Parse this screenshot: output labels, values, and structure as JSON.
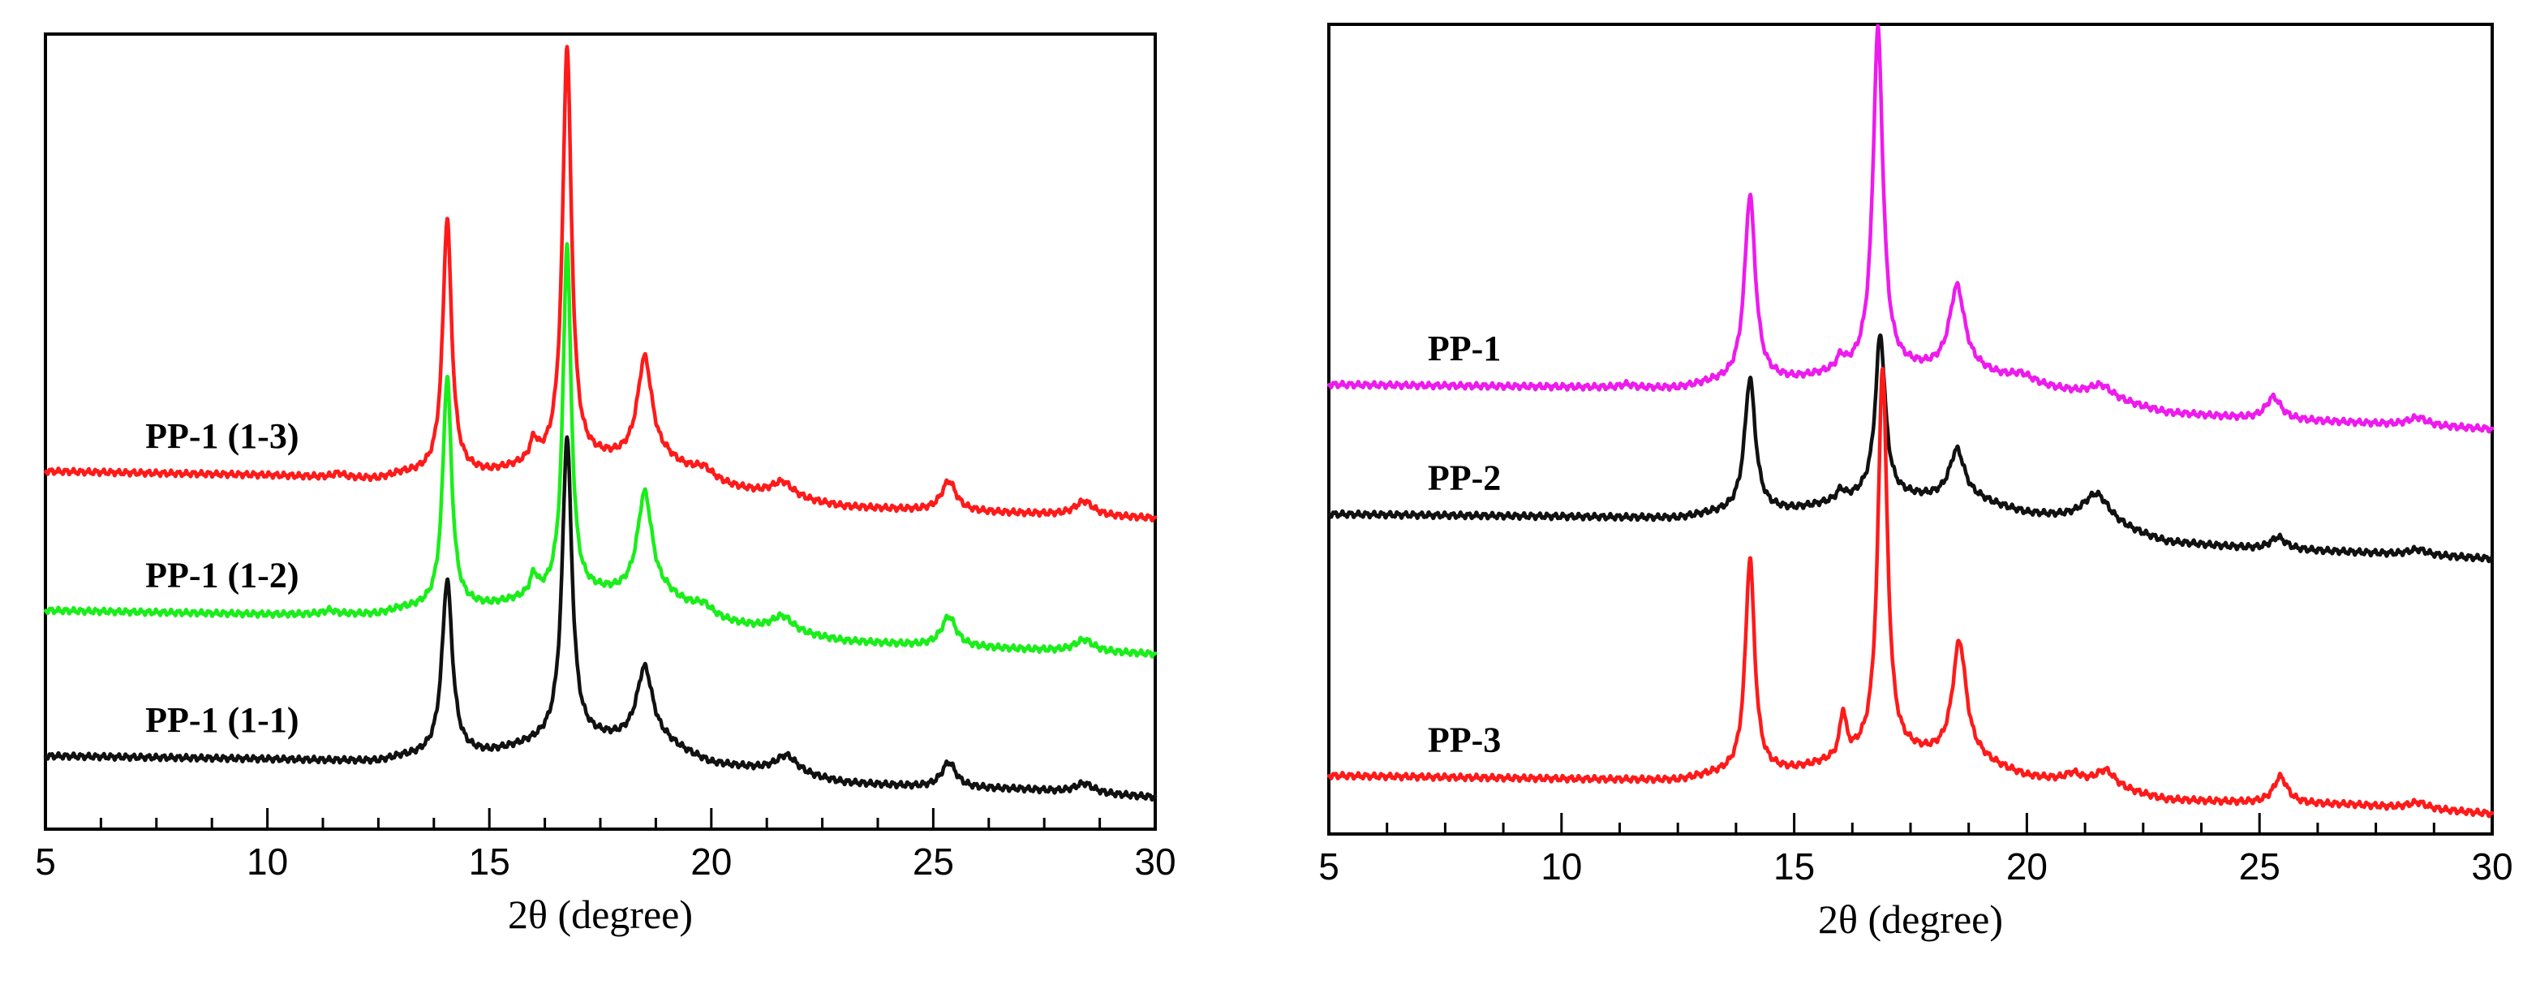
{
  "chart_data": [
    {
      "type": "line",
      "panel": "left",
      "xlabel": "2θ (degree)",
      "ylabel": "",
      "xlim": [
        5,
        30
      ],
      "ylim": [
        0,
        10
      ],
      "xticks": [
        5,
        10,
        15,
        20,
        25,
        30
      ],
      "series": [
        {
          "name": "PP-1 (1-3)",
          "color": "#ff1a1a",
          "baseline": [
            [
              5,
              4.5
            ],
            [
              10,
              4.45
            ],
            [
              12.5,
              4.4
            ],
            [
              13,
              4.46
            ],
            [
              15,
              4.47
            ],
            [
              16.5,
              4.62
            ],
            [
              17.5,
              4.63
            ],
            [
              19,
              4.6
            ],
            [
              20,
              4.34
            ],
            [
              21.5,
              4.17
            ],
            [
              23,
              4.05
            ],
            [
              25,
              4.0
            ],
            [
              27,
              3.97
            ],
            [
              30,
              3.91
            ]
          ],
          "peaks": [
            {
              "x": 11.6,
              "h": 0.05,
              "w": 0.15
            },
            {
              "x": 14.05,
              "h": 3.2,
              "w": 0.12
            },
            {
              "x": 16.0,
              "h": 0.25,
              "w": 0.1
            },
            {
              "x": 16.75,
              "h": 5.2,
              "w": 0.12
            },
            {
              "x": 18.5,
              "h": 1.3,
              "w": 0.2
            },
            {
              "x": 19.85,
              "h": 0.15,
              "w": 0.3
            },
            {
              "x": 21.6,
              "h": 0.2,
              "w": 0.3
            },
            {
              "x": 25.35,
              "h": 0.38,
              "w": 0.2
            },
            {
              "x": 28.4,
              "h": 0.18,
              "w": 0.25
            }
          ]
        },
        {
          "name": "PP-1 (1-2)",
          "color": "#1aee1a",
          "baseline": [
            [
              5,
              2.75
            ],
            [
              10,
              2.7
            ],
            [
              12.5,
              2.7
            ],
            [
              13,
              2.76
            ],
            [
              15,
              2.8
            ],
            [
              16.5,
              2.94
            ],
            [
              17.5,
              2.95
            ],
            [
              19,
              2.9
            ],
            [
              20,
              2.62
            ],
            [
              21.5,
              2.48
            ],
            [
              23,
              2.36
            ],
            [
              25,
              2.3
            ],
            [
              27,
              2.26
            ],
            [
              30,
              2.2
            ]
          ],
          "peaks": [
            {
              "x": 11.4,
              "h": 0.05,
              "w": 0.15
            },
            {
              "x": 14.05,
              "h": 2.9,
              "w": 0.12
            },
            {
              "x": 16.0,
              "h": 0.25,
              "w": 0.1
            },
            {
              "x": 16.75,
              "h": 4.4,
              "w": 0.11
            },
            {
              "x": 18.5,
              "h": 1.3,
              "w": 0.2
            },
            {
              "x": 19.85,
              "h": 0.15,
              "w": 0.3
            },
            {
              "x": 21.6,
              "h": 0.2,
              "w": 0.3
            },
            {
              "x": 25.35,
              "h": 0.38,
              "w": 0.2
            },
            {
              "x": 28.4,
              "h": 0.15,
              "w": 0.25
            }
          ]
        },
        {
          "name": "PP-1 (1-1)",
          "color": "#111111",
          "baseline": [
            [
              5,
              0.92
            ],
            [
              10,
              0.88
            ],
            [
              12.5,
              0.85
            ],
            [
              13,
              0.9
            ],
            [
              15,
              0.95
            ],
            [
              16.5,
              1.12
            ],
            [
              17.5,
              1.12
            ],
            [
              19,
              1.05
            ],
            [
              20,
              0.82
            ],
            [
              21.5,
              0.72
            ],
            [
              23,
              0.58
            ],
            [
              25,
              0.52
            ],
            [
              27,
              0.5
            ],
            [
              30,
              0.4
            ]
          ],
          "peaks": [
            {
              "x": 14.05,
              "h": 2.2,
              "w": 0.14
            },
            {
              "x": 16.75,
              "h": 3.8,
              "w": 0.13
            },
            {
              "x": 18.5,
              "h": 0.95,
              "w": 0.22
            },
            {
              "x": 21.7,
              "h": 0.22,
              "w": 0.3
            },
            {
              "x": 25.35,
              "h": 0.32,
              "w": 0.2
            },
            {
              "x": 28.4,
              "h": 0.12,
              "w": 0.25
            }
          ]
        }
      ]
    },
    {
      "type": "line",
      "panel": "right",
      "xlabel": "2θ (degree)",
      "ylabel": "",
      "xlim": [
        5,
        30
      ],
      "ylim": [
        0,
        10
      ],
      "xticks": [
        5,
        10,
        15,
        20,
        25,
        30
      ],
      "series": [
        {
          "name": "PP-1",
          "color": "#ee1aee",
          "baseline": [
            [
              5,
              5.55
            ],
            [
              10,
              5.52
            ],
            [
              12.5,
              5.5
            ],
            [
              13.2,
              5.56
            ],
            [
              15,
              5.6
            ],
            [
              16.5,
              5.72
            ],
            [
              17.5,
              5.72
            ],
            [
              19,
              5.68
            ],
            [
              20,
              5.55
            ],
            [
              21.5,
              5.4
            ],
            [
              23,
              5.2
            ],
            [
              25,
              5.12
            ],
            [
              27,
              5.08
            ],
            [
              30,
              5.0
            ]
          ],
          "peaks": [
            {
              "x": 11.4,
              "h": 0.04,
              "w": 0.15
            },
            {
              "x": 14.05,
              "h": 2.3,
              "w": 0.14
            },
            {
              "x": 16.0,
              "h": 0.15,
              "w": 0.1
            },
            {
              "x": 16.8,
              "h": 4.2,
              "w": 0.13
            },
            {
              "x": 18.5,
              "h": 1.05,
              "w": 0.2
            },
            {
              "x": 19.9,
              "h": 0.1,
              "w": 0.3
            },
            {
              "x": 21.6,
              "h": 0.15,
              "w": 0.3
            },
            {
              "x": 25.3,
              "h": 0.28,
              "w": 0.2
            },
            {
              "x": 28.4,
              "h": 0.1,
              "w": 0.25
            }
          ]
        },
        {
          "name": "PP-2",
          "color": "#111111",
          "baseline": [
            [
              5,
              3.95
            ],
            [
              10,
              3.92
            ],
            [
              12.5,
              3.9
            ],
            [
              13.2,
              3.95
            ],
            [
              15,
              4.0
            ],
            [
              16.5,
              4.15
            ],
            [
              17.5,
              4.15
            ],
            [
              19,
              4.1
            ],
            [
              20,
              3.95
            ],
            [
              21.5,
              3.85
            ],
            [
              23,
              3.6
            ],
            [
              25,
              3.52
            ],
            [
              27,
              3.48
            ],
            [
              30,
              3.4
            ]
          ],
          "peaks": [
            {
              "x": 14.05,
              "h": 1.65,
              "w": 0.14
            },
            {
              "x": 16.0,
              "h": 0.12,
              "w": 0.1
            },
            {
              "x": 16.85,
              "h": 2.0,
              "w": 0.13
            },
            {
              "x": 18.5,
              "h": 0.62,
              "w": 0.2
            },
            {
              "x": 21.5,
              "h": 0.35,
              "w": 0.35
            },
            {
              "x": 25.4,
              "h": 0.15,
              "w": 0.2
            },
            {
              "x": 28.4,
              "h": 0.07,
              "w": 0.25
            }
          ]
        },
        {
          "name": "PP-3",
          "color": "#ff1a1a",
          "baseline": [
            [
              5,
              0.72
            ],
            [
              10,
              0.68
            ],
            [
              12.5,
              0.66
            ],
            [
              13.2,
              0.72
            ],
            [
              15,
              0.78
            ],
            [
              16.5,
              0.95
            ],
            [
              17.5,
              0.97
            ],
            [
              19,
              0.88
            ],
            [
              20,
              0.7
            ],
            [
              21.5,
              0.6
            ],
            [
              23,
              0.42
            ],
            [
              25,
              0.38
            ],
            [
              27,
              0.36
            ],
            [
              30,
              0.25
            ]
          ],
          "peaks": [
            {
              "x": 14.05,
              "h": 2.65,
              "w": 0.12
            },
            {
              "x": 16.05,
              "h": 0.55,
              "w": 0.08
            },
            {
              "x": 16.9,
              "h": 4.8,
              "w": 0.12
            },
            {
              "x": 18.55,
              "h": 1.45,
              "w": 0.18
            },
            {
              "x": 21.0,
              "h": 0.1,
              "w": 0.2
            },
            {
              "x": 21.7,
              "h": 0.2,
              "w": 0.25
            },
            {
              "x": 25.45,
              "h": 0.33,
              "w": 0.18
            },
            {
              "x": 28.4,
              "h": 0.08,
              "w": 0.25
            }
          ]
        }
      ]
    }
  ]
}
